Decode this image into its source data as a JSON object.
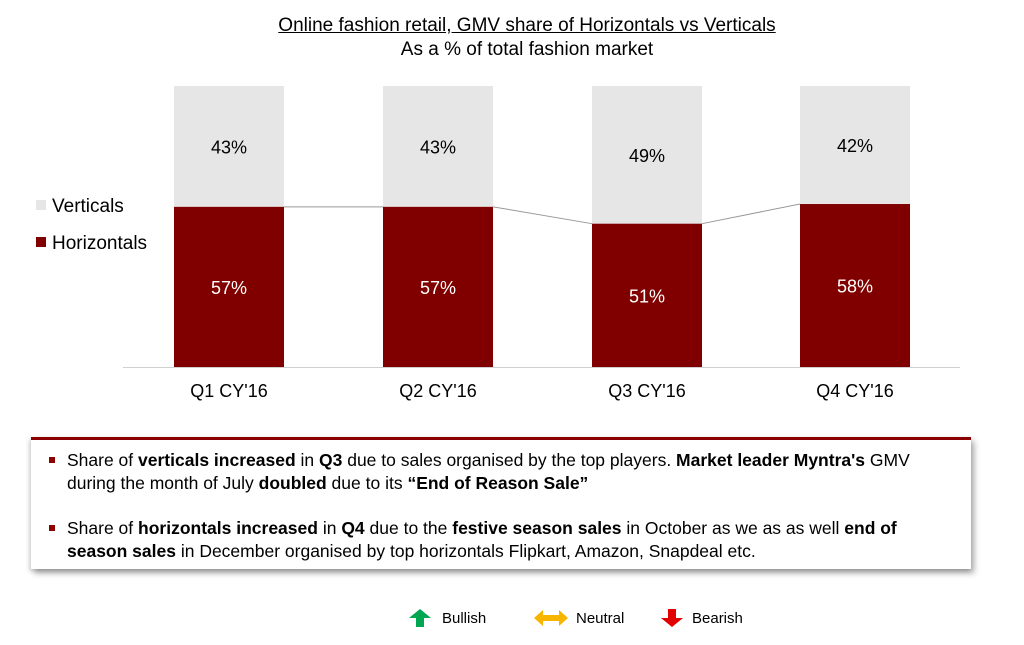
{
  "title": "Online fashion retail, GMV share of Horizontals vs Verticals",
  "subtitle": "As a % of total fashion market",
  "colors": {
    "verticals": "#e6e6e6",
    "horizontals": "#800000",
    "bullet": "#8b0000",
    "bullish": "#00a651",
    "neutral": "#f7b500",
    "bearish": "#e00000"
  },
  "legend": {
    "verticals": "Verticals",
    "horizontals": "Horizontals"
  },
  "chart_data": {
    "type": "bar",
    "stacked": true,
    "percent": true,
    "categories": [
      "Q1 CY'16",
      "Q2 CY'16",
      "Q3 CY'16",
      "Q4 CY'16"
    ],
    "series": [
      {
        "name": "Horizontals",
        "values": [
          57,
          57,
          51,
          58
        ],
        "labels": [
          "57%",
          "57%",
          "51%",
          "58%"
        ]
      },
      {
        "name": "Verticals",
        "values": [
          43,
          43,
          49,
          42
        ],
        "labels": [
          "43%",
          "43%",
          "49%",
          "42%"
        ]
      }
    ],
    "ylim": [
      0,
      100
    ],
    "legend_position": "left",
    "grid": false
  },
  "notes": [
    [
      {
        "t": "Share of ",
        "b": false
      },
      {
        "t": "verticals increased",
        "b": true
      },
      {
        "t": " in ",
        "b": false
      },
      {
        "t": "Q3",
        "b": true
      },
      {
        "t": " due to sales organised by the top players. ",
        "b": false
      },
      {
        "t": "Market leader Myntra's",
        "b": true
      },
      {
        "t": " GMV during the month of July ",
        "b": false
      },
      {
        "t": "doubled",
        "b": true
      },
      {
        "t": " due to its ",
        "b": false
      },
      {
        "t": "“End of Reason Sale”",
        "b": true
      }
    ],
    [
      {
        "t": "Share of ",
        "b": false
      },
      {
        "t": "horizontals increased",
        "b": true
      },
      {
        "t": " in ",
        "b": false
      },
      {
        "t": "Q4",
        "b": true
      },
      {
        "t": " due to the ",
        "b": false
      },
      {
        "t": "festive season sales",
        "b": true
      },
      {
        "t": " in October as we as as well ",
        "b": false
      },
      {
        "t": "end of season sales",
        "b": true
      },
      {
        "t": " in December organised by top horizontals Flipkart, Amazon, Snapdeal etc.",
        "b": false
      }
    ]
  ],
  "sentiment": {
    "bullish": "Bullish",
    "neutral": "Neutral",
    "bearish": "Bearish"
  }
}
